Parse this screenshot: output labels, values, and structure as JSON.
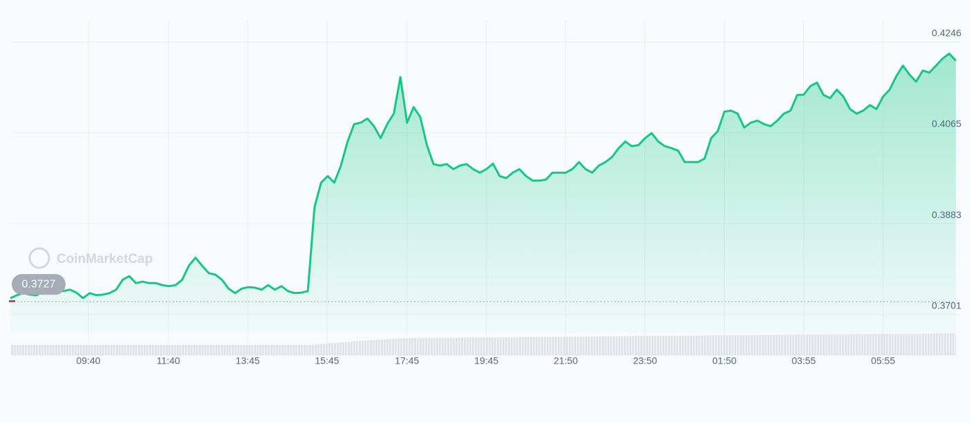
{
  "chart_data": {
    "type": "area",
    "watermark": "CoinMarketCap",
    "reference": 0.3727,
    "color": "#16c784",
    "values": [
      0.3734,
      0.374,
      0.3744,
      0.3741,
      0.374,
      0.3748,
      0.3745,
      0.3751,
      0.3748,
      0.3751,
      0.3745,
      0.3734,
      0.3744,
      0.374,
      0.3741,
      0.3744,
      0.3751,
      0.3771,
      0.3778,
      0.3764,
      0.3767,
      0.3764,
      0.3764,
      0.376,
      0.3758,
      0.376,
      0.3771,
      0.3799,
      0.3815,
      0.3799,
      0.3784,
      0.3781,
      0.3771,
      0.3753,
      0.3744,
      0.3753,
      0.3756,
      0.3755,
      0.3751,
      0.376,
      0.3751,
      0.3758,
      0.3748,
      0.3744,
      0.3745,
      0.3748,
      0.3916,
      0.3965,
      0.3978,
      0.3965,
      0.3999,
      0.4047,
      0.4082,
      0.4085,
      0.4093,
      0.4078,
      0.4054,
      0.4082,
      0.4103,
      0.4176,
      0.4085,
      0.4116,
      0.4096,
      0.404,
      0.4002,
      0.3999,
      0.4002,
      0.3992,
      0.3999,
      0.4002,
      0.3992,
      0.3985,
      0.3992,
      0.4003,
      0.3978,
      0.3974,
      0.3985,
      0.3992,
      0.3978,
      0.3969,
      0.3969,
      0.3971,
      0.3985,
      0.3985,
      0.3985,
      0.3992,
      0.4006,
      0.3992,
      0.3985,
      0.3999,
      0.4006,
      0.4016,
      0.4034,
      0.4047,
      0.4038,
      0.404,
      0.4054,
      0.4064,
      0.4047,
      0.4038,
      0.4034,
      0.4029,
      0.4006,
      0.4006,
      0.4006,
      0.4013,
      0.4054,
      0.4068,
      0.4107,
      0.4109,
      0.4103,
      0.4075,
      0.4085,
      0.4089,
      0.4082,
      0.4078,
      0.4089,
      0.4103,
      0.4109,
      0.414,
      0.4141,
      0.4158,
      0.4165,
      0.414,
      0.4134,
      0.4151,
      0.4137,
      0.4112,
      0.4103,
      0.4109,
      0.412,
      0.4112,
      0.4137,
      0.4151,
      0.4178,
      0.4199,
      0.4181,
      0.4167,
      0.4189,
      0.4185,
      0.4199,
      0.4213,
      0.4223,
      0.4209
    ],
    "xlim": [
      0,
      143
    ],
    "xticks": [
      {
        "value": 11.8,
        "label": "09:40"
      },
      {
        "value": 23.9,
        "label": "11:40"
      },
      {
        "value": 35.9,
        "label": "13:45"
      },
      {
        "value": 47.9,
        "label": "15:45"
      },
      {
        "value": 60.0,
        "label": "17:45"
      },
      {
        "value": 72.0,
        "label": "19:45"
      },
      {
        "value": 84.0,
        "label": "21:50"
      },
      {
        "value": 96.0,
        "label": "23:50"
      },
      {
        "value": 108.0,
        "label": "01:50"
      },
      {
        "value": 120.0,
        "label": "03:55"
      },
      {
        "value": 132.0,
        "label": "05:55"
      }
    ],
    "ylim": [
      0.3701,
      0.4246
    ],
    "yticks": [
      0.4246,
      0.4065,
      0.3883,
      0.3701
    ],
    "grid": true
  }
}
